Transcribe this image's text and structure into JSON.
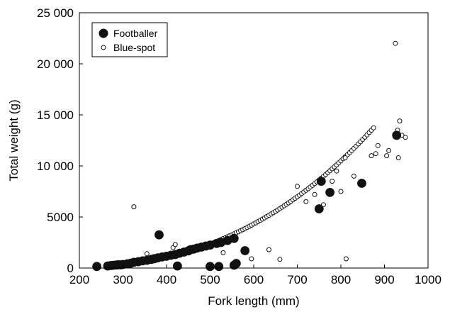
{
  "chart_data": {
    "type": "scatter",
    "xlabel": "Fork length (mm)",
    "ylabel": "Total weight (g)",
    "xlim": [
      200,
      1000
    ],
    "ylim": [
      0,
      25000
    ],
    "x_ticks": [
      200,
      300,
      400,
      500,
      600,
      700,
      800,
      900,
      1000
    ],
    "x_tick_labels": [
      "200",
      "300",
      "400",
      "500",
      "600",
      "700",
      "800",
      "900",
      "1000"
    ],
    "y_ticks": [
      0,
      5000,
      10000,
      15000,
      20000,
      25000
    ],
    "y_tick_labels": [
      "0",
      "5000",
      "10 000",
      "15 000",
      "20 000",
      "25 000"
    ],
    "grid": false,
    "legend_position": "top-left",
    "series": [
      {
        "name": "Footballer",
        "marker": "filled-circle",
        "color": "#111111",
        "points": [
          [
            240,
            150
          ],
          [
            265,
            200
          ],
          [
            272,
            240
          ],
          [
            278,
            270
          ],
          [
            285,
            300
          ],
          [
            290,
            320
          ],
          [
            295,
            310
          ],
          [
            300,
            350
          ],
          [
            310,
            420
          ],
          [
            318,
            480
          ],
          [
            325,
            560
          ],
          [
            335,
            620
          ],
          [
            345,
            700
          ],
          [
            355,
            760
          ],
          [
            365,
            850
          ],
          [
            372,
            920
          ],
          [
            380,
            1000
          ],
          [
            390,
            1080
          ],
          [
            400,
            1150
          ],
          [
            410,
            1250
          ],
          [
            420,
            1320
          ],
          [
            430,
            1450
          ],
          [
            440,
            1560
          ],
          [
            450,
            1680
          ],
          [
            455,
            1800
          ],
          [
            462,
            1850
          ],
          [
            470,
            1950
          ],
          [
            480,
            2050
          ],
          [
            490,
            2150
          ],
          [
            500,
            2250
          ],
          [
            515,
            2400
          ],
          [
            525,
            2500
          ],
          [
            540,
            2700
          ],
          [
            555,
            2900
          ],
          [
            383,
            3250
          ],
          [
            425,
            200
          ],
          [
            500,
            150
          ],
          [
            520,
            150
          ],
          [
            555,
            280
          ],
          [
            560,
            450
          ],
          [
            580,
            1700
          ],
          [
            750,
            5800
          ],
          [
            755,
            8500
          ],
          [
            775,
            7400
          ],
          [
            848,
            8300
          ],
          [
            928,
            13000
          ]
        ]
      },
      {
        "name": "Blue-spot",
        "marker": "open-circle",
        "color": "#111111",
        "points": [
          [
            262,
            180
          ],
          [
            270,
            200
          ],
          [
            280,
            230
          ],
          [
            290,
            270
          ],
          [
            300,
            310
          ],
          [
            310,
            360
          ],
          [
            320,
            410
          ],
          [
            330,
            460
          ],
          [
            340,
            520
          ],
          [
            345,
            570
          ],
          [
            350,
            600
          ],
          [
            355,
            640
          ],
          [
            360,
            680
          ],
          [
            365,
            720
          ],
          [
            370,
            760
          ],
          [
            375,
            800
          ],
          [
            380,
            850
          ],
          [
            385,
            890
          ],
          [
            390,
            940
          ],
          [
            395,
            990
          ],
          [
            400,
            1040
          ],
          [
            405,
            1090
          ],
          [
            410,
            1150
          ],
          [
            415,
            1200
          ],
          [
            420,
            1260
          ],
          [
            425,
            1320
          ],
          [
            430,
            1380
          ],
          [
            435,
            1440
          ],
          [
            440,
            1500
          ],
          [
            445,
            1560
          ],
          [
            450,
            1630
          ],
          [
            455,
            1700
          ],
          [
            460,
            1770
          ],
          [
            465,
            1840
          ],
          [
            470,
            1910
          ],
          [
            475,
            1980
          ],
          [
            480,
            2050
          ],
          [
            485,
            2130
          ],
          [
            490,
            2200
          ],
          [
            495,
            2280
          ],
          [
            500,
            2360
          ],
          [
            505,
            2440
          ],
          [
            510,
            2520
          ],
          [
            515,
            2610
          ],
          [
            520,
            2700
          ],
          [
            525,
            2790
          ],
          [
            530,
            2880
          ],
          [
            535,
            2970
          ],
          [
            540,
            3060
          ],
          [
            545,
            3160
          ],
          [
            550,
            3250
          ],
          [
            555,
            3350
          ],
          [
            560,
            3450
          ],
          [
            565,
            3550
          ],
          [
            570,
            3660
          ],
          [
            575,
            3760
          ],
          [
            580,
            3870
          ],
          [
            585,
            3980
          ],
          [
            590,
            4090
          ],
          [
            595,
            4200
          ],
          [
            600,
            4320
          ],
          [
            605,
            4430
          ],
          [
            610,
            4550
          ],
          [
            615,
            4670
          ],
          [
            620,
            4790
          ],
          [
            625,
            4910
          ],
          [
            630,
            5040
          ],
          [
            635,
            5160
          ],
          [
            640,
            5290
          ],
          [
            645,
            5420
          ],
          [
            650,
            5550
          ],
          [
            655,
            5690
          ],
          [
            660,
            5820
          ],
          [
            665,
            5960
          ],
          [
            670,
            6100
          ],
          [
            675,
            6240
          ],
          [
            680,
            6380
          ],
          [
            685,
            6530
          ],
          [
            690,
            6680
          ],
          [
            695,
            6830
          ],
          [
            700,
            6980
          ],
          [
            705,
            7130
          ],
          [
            710,
            7290
          ],
          [
            715,
            7450
          ],
          [
            720,
            7610
          ],
          [
            725,
            7770
          ],
          [
            730,
            7940
          ],
          [
            735,
            8100
          ],
          [
            740,
            8270
          ],
          [
            745,
            8440
          ],
          [
            750,
            8620
          ],
          [
            755,
            8800
          ],
          [
            760,
            8980
          ],
          [
            765,
            9160
          ],
          [
            770,
            9340
          ],
          [
            775,
            9530
          ],
          [
            780,
            9720
          ],
          [
            785,
            9910
          ],
          [
            790,
            10100
          ],
          [
            795,
            10300
          ],
          [
            800,
            10500
          ],
          [
            805,
            10700
          ],
          [
            810,
            10900
          ],
          [
            815,
            11100
          ],
          [
            820,
            11300
          ],
          [
            825,
            11510
          ],
          [
            830,
            11720
          ],
          [
            835,
            11930
          ],
          [
            840,
            12150
          ],
          [
            845,
            12370
          ],
          [
            850,
            12590
          ],
          [
            855,
            12810
          ],
          [
            860,
            13040
          ],
          [
            865,
            13270
          ],
          [
            870,
            13500
          ],
          [
            875,
            13730
          ],
          [
            325,
            6000
          ],
          [
            355,
            1400
          ],
          [
            415,
            2000
          ],
          [
            420,
            2300
          ],
          [
            465,
            1800
          ],
          [
            530,
            1500
          ],
          [
            595,
            900
          ],
          [
            635,
            1800
          ],
          [
            660,
            850
          ],
          [
            700,
            8000
          ],
          [
            720,
            6500
          ],
          [
            740,
            7200
          ],
          [
            760,
            6200
          ],
          [
            780,
            8500
          ],
          [
            790,
            9500
          ],
          [
            800,
            7500
          ],
          [
            810,
            10800
          ],
          [
            812,
            900
          ],
          [
            830,
            9000
          ],
          [
            870,
            11000
          ],
          [
            880,
            11200
          ],
          [
            885,
            12000
          ],
          [
            905,
            11000
          ],
          [
            910,
            11500
          ],
          [
            925,
            22000
          ],
          [
            930,
            13500
          ],
          [
            935,
            14400
          ],
          [
            940,
            13000
          ],
          [
            932,
            10800
          ],
          [
            948,
            12800
          ]
        ]
      }
    ]
  }
}
